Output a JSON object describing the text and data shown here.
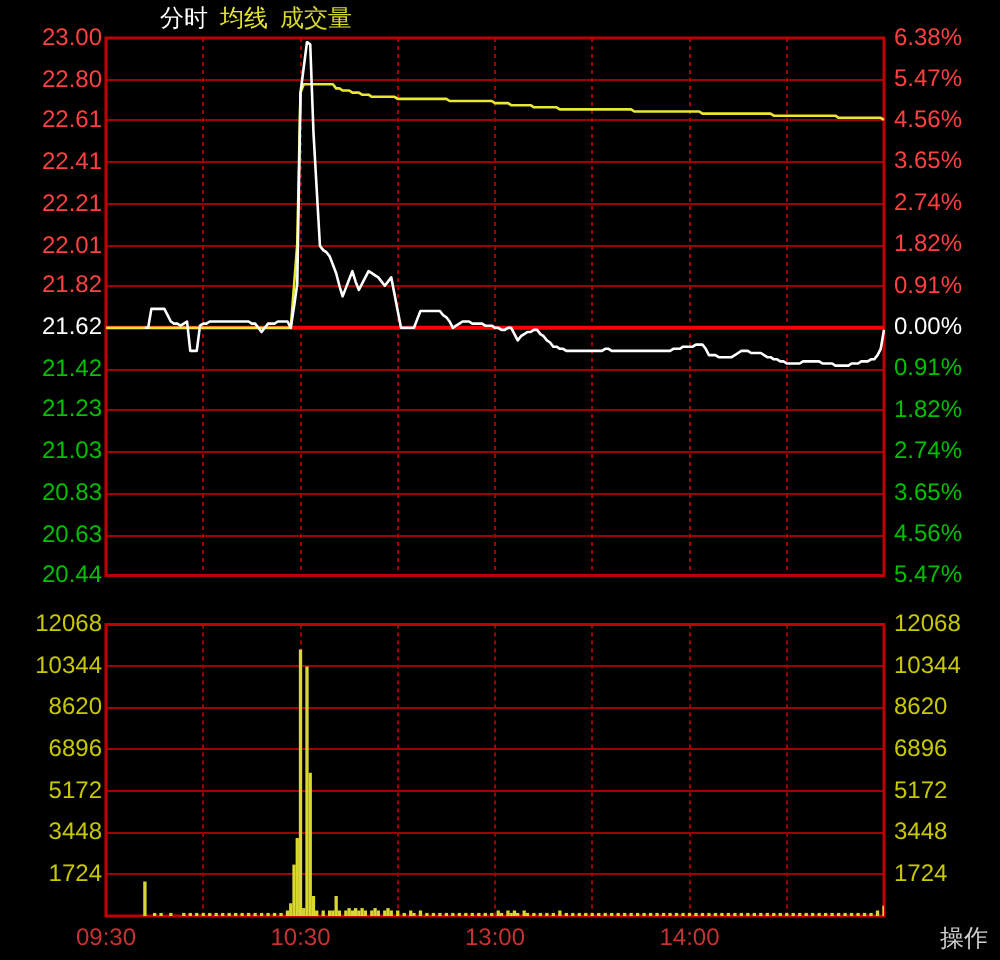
{
  "chart_data": [
    {
      "type": "line",
      "legend": "top left",
      "grid": true,
      "tick_labels": "y",
      "marker": "none",
      "line_style": "solid",
      "categories": [
        null,
        null,
        null,
        null,
        null,
        null,
        null,
        null,
        null,
        null,
        null,
        null,
        null,
        null,
        null,
        null,
        null,
        null,
        null,
        null,
        null,
        null,
        null,
        null,
        null,
        null,
        null,
        null,
        null,
        null,
        null,
        null,
        null,
        null,
        null,
        null,
        null,
        null,
        null,
        null,
        null,
        null,
        null,
        null,
        null,
        null,
        null,
        null,
        null,
        null,
        null,
        null,
        null,
        null,
        null,
        null,
        null,
        null,
        null,
        null,
        null,
        null,
        null,
        null,
        null,
        null,
        null,
        null,
        null,
        null,
        null,
        null,
        null,
        null,
        null,
        null,
        null,
        null,
        null,
        null,
        null,
        null,
        null,
        null,
        null,
        null,
        null,
        null,
        null,
        null,
        null,
        null,
        null,
        null,
        null,
        null,
        null,
        null,
        null,
        null,
        null,
        null,
        null,
        null,
        null,
        null,
        null,
        null,
        null,
        null,
        null,
        null,
        null,
        null,
        null,
        null,
        null,
        null,
        null,
        null,
        null,
        null,
        null,
        null,
        null,
        null,
        null,
        null,
        null,
        null,
        null,
        null,
        null,
        null,
        null,
        null,
        null,
        null,
        null,
        null,
        null,
        null,
        null,
        null,
        null,
        null,
        null,
        null,
        null,
        null,
        null,
        null,
        null,
        null,
        null,
        null,
        null,
        null,
        null,
        null,
        null,
        null,
        null,
        null,
        null,
        null,
        null,
        null,
        null,
        null,
        null,
        null,
        null,
        null,
        null,
        null,
        null,
        null,
        null,
        null,
        null,
        null,
        null,
        null,
        null,
        null,
        null,
        null,
        null,
        null,
        null,
        null,
        null,
        null,
        null,
        null,
        null,
        null,
        null,
        null,
        null,
        null,
        null,
        null,
        null,
        null,
        null,
        null,
        null,
        null,
        null,
        null,
        null,
        null,
        null,
        null,
        null,
        null,
        null,
        null,
        null,
        null,
        null,
        null,
        null,
        null,
        null,
        null,
        null,
        null,
        null,
        null,
        null,
        null,
        null,
        null,
        null,
        null,
        null,
        null,
        null
      ],
      "ylim": [
        20.44,
        23.0
      ],
      "yticks": [
        {
          "value": 23,
          "label": "23.00"
        },
        {
          "value": 22.8,
          "label": "22.80"
        },
        22.61,
        22.41,
        22.21,
        22.01,
        21.82,
        21.62,
        21.42,
        21.23,
        21.03,
        20.83,
        20.63,
        20.44
      ],
      "y2lim": [
        -5.47,
        6.38
      ],
      "y2ticks": [
        {
          "value": 6.38,
          "label": "6.38%"
        },
        {
          "value": 5.47,
          "label": "5.47%"
        },
        {
          "value": 4.56,
          "label": "4.56%"
        },
        {
          "value": 3.65,
          "label": "3.65%"
        },
        {
          "value": 2.74,
          "label": "2.74%"
        },
        {
          "value": 1.82,
          "label": "1.82%"
        },
        {
          "value": 0.91,
          "label": "0.91%"
        },
        {
          "value": 0,
          "label": "0.00%"
        },
        {
          "value": -0.91,
          "label": "0.91%"
        },
        {
          "value": -1.82,
          "label": "1.82%"
        },
        {
          "value": -2.74,
          "label": "2.74%"
        },
        {
          "value": -3.65,
          "label": "3.65%"
        },
        {
          "value": -4.56,
          "label": "4.56%"
        },
        {
          "value": -5.47,
          "label": "5.47%"
        }
      ],
      "ref_lines": [
        {
          "axis": "y",
          "value": 21.62,
          "color": "#ff0000"
        }
      ],
      "series": [
        {
          "name": "分时",
          "color": "#ffffff",
          "values": [
            null,
            null,
            null,
            null,
            null,
            null,
            null,
            null,
            null,
            null,
            null,
            null,
            21.62,
            21.62,
            21.71,
            21.71,
            21.71,
            21.71,
            21.71,
            21.68,
            21.65,
            21.64,
            21.64,
            21.63,
            21.64,
            21.65,
            21.51,
            21.51,
            21.51,
            21.63,
            21.64,
            21.64,
            21.65,
            21.65,
            21.65,
            21.65,
            21.65,
            21.65,
            21.65,
            21.65,
            21.65,
            21.65,
            21.65,
            21.65,
            21.65,
            21.64,
            21.64,
            21.62,
            21.6,
            21.62,
            21.64,
            21.64,
            21.64,
            21.65,
            21.65,
            21.65,
            21.65,
            21.62,
            21.72,
            21.83,
            22.74,
            22.86,
            22.98,
            22.97,
            22.55,
            22.28,
            22.01,
            21.99,
            21.98,
            21.96,
            21.92,
            21.88,
            21.82,
            21.77,
            21.81,
            21.85,
            21.89,
            21.84,
            21.8,
            21.83,
            21.86,
            21.89,
            21.88,
            21.87,
            21.86,
            21.84,
            21.82,
            21.84,
            21.86,
            21.78,
            21.7,
            21.62,
            21.62,
            21.62,
            21.62,
            21.62,
            21.66,
            21.7,
            21.7,
            21.7,
            21.7,
            21.7,
            21.7,
            21.7,
            21.68,
            21.67,
            21.65,
            21.62,
            21.63,
            21.64,
            21.65,
            21.65,
            21.65,
            21.64,
            21.64,
            21.64,
            21.64,
            21.63,
            21.63,
            21.63,
            21.62,
            21.62,
            21.61,
            21.61,
            21.62,
            21.62,
            21.59,
            21.56,
            21.58,
            21.59,
            21.6,
            21.6,
            21.61,
            21.61,
            21.59,
            21.58,
            21.56,
            21.55,
            21.53,
            21.53,
            21.52,
            21.52,
            21.51,
            21.51,
            21.51,
            21.51,
            21.51,
            21.51,
            21.51,
            21.51,
            21.51,
            21.51,
            21.51,
            21.51,
            21.52,
            21.52,
            21.51,
            21.51,
            21.51,
            21.51,
            21.51,
            21.51,
            21.51,
            21.51,
            21.51,
            21.51,
            21.51,
            21.51,
            21.51,
            21.51,
            21.51,
            21.51,
            21.51,
            21.51,
            21.51,
            21.52,
            21.52,
            21.52,
            21.53,
            21.53,
            21.53,
            21.53,
            21.54,
            21.54,
            21.54,
            21.52,
            21.49,
            21.49,
            21.49,
            21.48,
            21.48,
            21.48,
            21.48,
            21.48,
            21.49,
            21.5,
            21.51,
            21.51,
            21.51,
            21.5,
            21.5,
            21.5,
            21.5,
            21.49,
            21.48,
            21.48,
            21.47,
            21.47,
            21.46,
            21.46,
            21.45,
            21.45,
            21.45,
            21.45,
            21.45,
            21.46,
            21.46,
            21.46,
            21.46,
            21.46,
            21.46,
            21.45,
            21.45,
            21.45,
            21.45,
            21.44,
            21.44,
            21.44,
            21.44,
            21.44,
            21.45,
            21.45,
            21.45,
            21.46,
            21.46,
            21.46,
            21.47,
            21.47,
            21.49,
            21.52,
            21.61
          ]
        },
        {
          "name": "均线",
          "color": "#e8e832",
          "values": [
            21.62,
            21.62,
            21.62,
            21.62,
            21.62,
            21.62,
            21.62,
            21.62,
            21.62,
            21.62,
            21.62,
            21.62,
            21.62,
            21.62,
            21.62,
            21.62,
            21.62,
            21.62,
            21.62,
            21.62,
            21.62,
            21.62,
            21.62,
            21.62,
            21.62,
            21.62,
            21.62,
            21.62,
            21.62,
            21.62,
            21.62,
            21.62,
            21.62,
            21.62,
            21.62,
            21.62,
            21.62,
            21.62,
            21.62,
            21.62,
            21.62,
            21.62,
            21.62,
            21.62,
            21.62,
            21.62,
            21.62,
            21.62,
            21.62,
            21.62,
            21.62,
            21.62,
            21.62,
            21.62,
            21.62,
            21.62,
            21.62,
            21.62,
            21.82,
            22.02,
            22.74,
            22.78,
            22.78,
            22.78,
            22.78,
            22.78,
            22.78,
            22.78,
            22.78,
            22.78,
            22.78,
            22.76,
            22.76,
            22.75,
            22.75,
            22.75,
            22.74,
            22.74,
            22.74,
            22.73,
            22.73,
            22.73,
            22.72,
            22.72,
            22.72,
            22.72,
            22.72,
            22.72,
            22.72,
            22.72,
            22.71,
            22.71,
            22.71,
            22.71,
            22.71,
            22.71,
            22.71,
            22.71,
            22.71,
            22.71,
            22.71,
            22.71,
            22.71,
            22.71,
            22.71,
            22.71,
            22.7,
            22.7,
            22.7,
            22.7,
            22.7,
            22.7,
            22.7,
            22.7,
            22.7,
            22.7,
            22.7,
            22.7,
            22.7,
            22.7,
            22.69,
            22.69,
            22.69,
            22.69,
            22.69,
            22.68,
            22.68,
            22.68,
            22.68,
            22.68,
            22.68,
            22.68,
            22.67,
            22.67,
            22.67,
            22.67,
            22.67,
            22.67,
            22.67,
            22.67,
            22.66,
            22.66,
            22.66,
            22.66,
            22.66,
            22.66,
            22.66,
            22.66,
            22.66,
            22.66,
            22.66,
            22.66,
            22.66,
            22.66,
            22.66,
            22.66,
            22.66,
            22.66,
            22.66,
            22.66,
            22.66,
            22.66,
            22.66,
            22.65,
            22.65,
            22.65,
            22.65,
            22.65,
            22.65,
            22.65,
            22.65,
            22.65,
            22.65,
            22.65,
            22.65,
            22.65,
            22.65,
            22.65,
            22.65,
            22.65,
            22.65,
            22.65,
            22.65,
            22.65,
            22.64,
            22.64,
            22.64,
            22.64,
            22.64,
            22.64,
            22.64,
            22.64,
            22.64,
            22.64,
            22.64,
            22.64,
            22.64,
            22.64,
            22.64,
            22.64,
            22.64,
            22.64,
            22.64,
            22.64,
            22.64,
            22.64,
            22.63,
            22.63,
            22.63,
            22.63,
            22.63,
            22.63,
            22.63,
            22.63,
            22.63,
            22.63,
            22.63,
            22.63,
            22.63,
            22.63,
            22.63,
            22.63,
            22.63,
            22.63,
            22.63,
            22.63,
            22.62,
            22.62,
            22.62,
            22.62,
            22.62,
            22.62,
            22.62,
            22.62,
            22.62,
            22.62,
            22.62,
            22.62,
            22.62,
            22.62,
            22.61
          ]
        }
      ]
    },
    {
      "type": "bar",
      "grid": true,
      "categories": [
        "09:30",
        null,
        null,
        null,
        null,
        null,
        null,
        null,
        null,
        null,
        null,
        null,
        null,
        null,
        null,
        null,
        null,
        null,
        null,
        null,
        null,
        null,
        null,
        null,
        null,
        null,
        null,
        null,
        null,
        null,
        null,
        null,
        null,
        null,
        null,
        null,
        null,
        null,
        null,
        null,
        null,
        null,
        null,
        null,
        null,
        null,
        null,
        null,
        null,
        null,
        null,
        null,
        null,
        null,
        null,
        null,
        null,
        null,
        null,
        null,
        "10:30",
        null,
        null,
        null,
        null,
        null,
        null,
        null,
        null,
        null,
        null,
        null,
        null,
        null,
        null,
        null,
        null,
        null,
        null,
        null,
        null,
        null,
        null,
        null,
        null,
        null,
        null,
        null,
        null,
        null,
        null,
        null,
        null,
        null,
        null,
        null,
        null,
        null,
        null,
        null,
        null,
        null,
        null,
        null,
        null,
        null,
        null,
        null,
        null,
        null,
        null,
        null,
        null,
        null,
        null,
        null,
        null,
        null,
        null,
        null,
        "13:00",
        null,
        null,
        null,
        null,
        null,
        null,
        null,
        null,
        null,
        null,
        null,
        null,
        null,
        null,
        null,
        null,
        null,
        null,
        null,
        null,
        null,
        null,
        null,
        null,
        null,
        null,
        null,
        null,
        null,
        null,
        null,
        null,
        null,
        null,
        null,
        null,
        null,
        null,
        null,
        null,
        null,
        null,
        null,
        null,
        null,
        null,
        null,
        null,
        null,
        null,
        null,
        null,
        null,
        null,
        null,
        null,
        null,
        null,
        null,
        "14:00",
        null,
        null,
        null,
        null,
        null,
        null,
        null,
        null,
        null,
        null,
        null,
        null,
        null,
        null,
        null,
        null,
        null,
        null,
        null,
        null,
        null,
        null,
        null,
        null,
        null,
        null,
        null,
        null,
        null,
        null,
        null,
        null,
        null,
        null,
        null,
        null,
        null,
        null,
        null,
        null,
        null,
        null,
        null,
        null,
        null,
        null,
        null,
        null,
        null,
        null,
        null,
        null,
        null,
        null,
        null,
        null,
        null,
        null,
        null,
        null
      ],
      "ylim": [
        0,
        12068
      ],
      "yticks": [
        12068,
        10344,
        8620,
        6896,
        5172,
        3448,
        1724
      ],
      "y2lim": [
        0,
        12068
      ],
      "y2ticks": [
        12068,
        10344,
        8620,
        6896,
        5172,
        3448,
        1724
      ],
      "annotations": [
        "操作"
      ],
      "series": [
        {
          "name": "成交量",
          "color": "#d8d830",
          "values": [
            null,
            null,
            null,
            null,
            null,
            null,
            null,
            null,
            null,
            null,
            null,
            null,
            1400,
            null,
            null,
            100,
            null,
            100,
            null,
            null,
            100,
            null,
            null,
            null,
            100,
            null,
            100,
            null,
            100,
            null,
            100,
            null,
            100,
            null,
            100,
            null,
            100,
            null,
            100,
            null,
            100,
            null,
            100,
            null,
            100,
            null,
            100,
            null,
            100,
            null,
            100,
            null,
            100,
            null,
            100,
            null,
            200,
            500,
            2100,
            3200,
            11000,
            300,
            10300,
            5900,
            800,
            200,
            null,
            200,
            null,
            200,
            200,
            800,
            200,
            null,
            200,
            300,
            200,
            300,
            200,
            300,
            200,
            null,
            200,
            300,
            200,
            null,
            200,
            300,
            200,
            null,
            200,
            null,
            100,
            null,
            200,
            100,
            null,
            200,
            null,
            100,
            null,
            100,
            null,
            100,
            null,
            100,
            null,
            100,
            null,
            100,
            null,
            100,
            null,
            100,
            null,
            100,
            null,
            100,
            null,
            100,
            null,
            200,
            100,
            null,
            200,
            100,
            200,
            100,
            null,
            200,
            100,
            null,
            100,
            null,
            100,
            null,
            100,
            null,
            100,
            null,
            200,
            null,
            100,
            null,
            100,
            null,
            100,
            null,
            100,
            null,
            100,
            null,
            100,
            null,
            100,
            null,
            100,
            null,
            100,
            null,
            100,
            null,
            100,
            null,
            100,
            null,
            100,
            null,
            100,
            null,
            100,
            null,
            100,
            null,
            100,
            null,
            100,
            null,
            100,
            null,
            100,
            null,
            100,
            null,
            100,
            null,
            100,
            null,
            100,
            null,
            100,
            null,
            100,
            null,
            100,
            null,
            100,
            null,
            100,
            null,
            100,
            null,
            100,
            null,
            100,
            null,
            100,
            null,
            100,
            null,
            100,
            null,
            100,
            null,
            100,
            null,
            100,
            null,
            100,
            null,
            100,
            null,
            100,
            null,
            100,
            null,
            100,
            null,
            100,
            null,
            100,
            null,
            100,
            null,
            100,
            null,
            100,
            null,
            200,
            null,
            400
          ]
        }
      ]
    }
  ]
}
